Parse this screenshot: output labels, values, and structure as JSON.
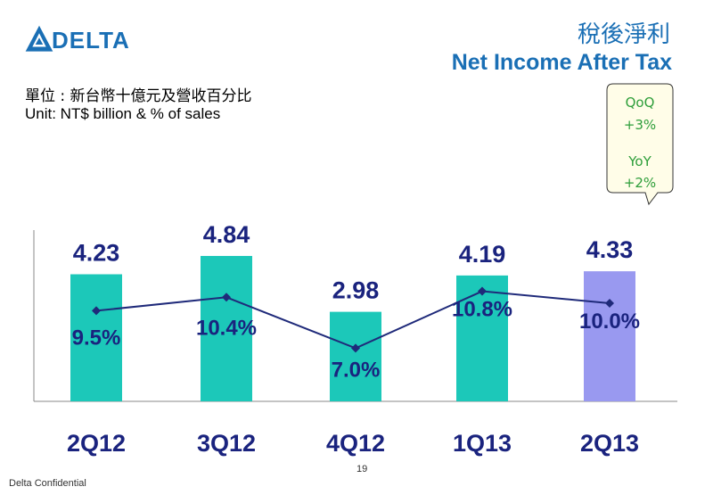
{
  "title_cn": "稅後淨利",
  "title_en": "Net Income After Tax",
  "unit_cn": "單位 : 新台幣十億元及營收百分比",
  "unit_en": "Unit: NT$ billion & % of sales",
  "logo_text": "DELTA",
  "callout": {
    "qoq_label": "QoQ",
    "qoq_value": "+3%",
    "yoy_label": "YoY",
    "yoy_value": "+2%"
  },
  "chart_data": {
    "type": "bar",
    "categories": [
      "2Q12",
      "3Q12",
      "4Q12",
      "1Q13",
      "2Q13"
    ],
    "series": [
      {
        "values": [
          4.23,
          4.84,
          2.98,
          4.19,
          4.33
        ],
        "labels": [
          "4.23",
          "4.84",
          "2.98",
          "4.19",
          "4.33"
        ],
        "colors": [
          "#1cc8b9",
          "#1cc8b9",
          "#1cc8b9",
          "#1cc8b9",
          "#9999f0"
        ]
      },
      {
        "type": "line",
        "values": [
          9.5,
          10.4,
          7.0,
          10.8,
          10.0
        ],
        "labels": [
          "9.5%",
          "10.4%",
          "7.0%",
          "10.8%",
          "10.0%"
        ],
        "color": "#1f2a7a"
      }
    ],
    "ylim": [
      0,
      5.7
    ]
  },
  "colors": {
    "accent": "#1a6fb5",
    "bar": "#1cc8b9",
    "bar_highlight": "#9999f0",
    "label": "#1a237e",
    "callout_text": "#2e9e3a"
  },
  "footer": {
    "page_number": "19",
    "confidential": "Delta Confidential"
  }
}
